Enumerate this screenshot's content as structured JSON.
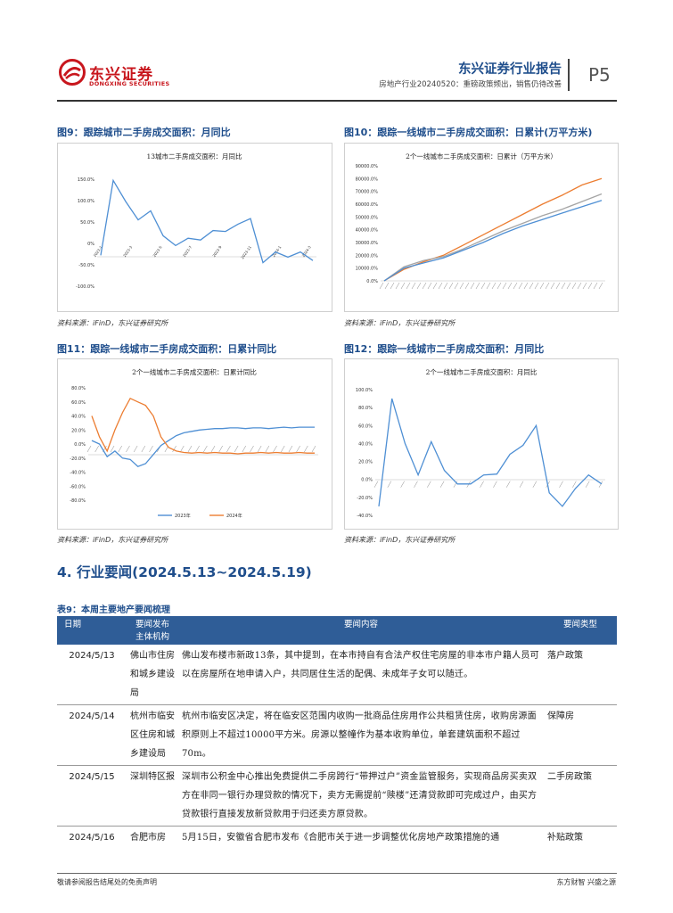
{
  "header": {
    "logo_cn": "东兴证券",
    "logo_en": "DONGXING SECURITIES",
    "report_title": "东兴证券行业报告",
    "report_subtitle": "房地产行业20240520：重磅政策频出，销售仍待改善",
    "page_number": "P5"
  },
  "figures": [
    {
      "id": "fig9",
      "caption": "图9：跟踪城市二手房成交面积：月同比",
      "source": "资料来源：iFinD，东兴证券研究所",
      "chart_data": {
        "type": "line",
        "title": "13城市二手房成交面积：月同比",
        "y_ticks": [
          "150.0%",
          "100.0%",
          "50.0%",
          "0%",
          "-50.0%",
          "-100.0%"
        ],
        "ylim": [
          -100,
          150
        ],
        "x_ticks": [
          "2023-1",
          "2023-3",
          "2023-5",
          "2023-7",
          "2023-9",
          "2023-11",
          "2024-1",
          "2024-3"
        ],
        "series": [
          {
            "color": "#4e8fd4",
            "values": [
              -28,
              147,
              98,
              55,
              76,
              18,
              -5,
              12,
              8,
              30,
              28,
              45,
              58,
              -45,
              -20,
              -32,
              -20,
              -40
            ]
          }
        ]
      }
    },
    {
      "id": "fig10",
      "caption": "图10：跟踪一线城市二手房成交面积：日累计(万平方米)",
      "source": "资料来源：iFinD，东兴证券研究所",
      "chart_data": {
        "type": "line",
        "title": "2个一线城市二手房成交面积：日累计（万平方米）",
        "y_ticks": [
          "90000.0%",
          "80000.0%",
          "70000.0%",
          "60000.0%",
          "50000.0%",
          "40000.0%",
          "30000.0%",
          "20000.0%",
          "10000.0%",
          "0.0%"
        ],
        "ylim": [
          0,
          90000
        ],
        "series": [
          {
            "color": "#ec7d31",
            "values": [
              0,
              9000,
              15000,
              20000,
              28000,
              36000,
              44000,
              52000,
              60000,
              67000,
              75000,
              80000
            ]
          },
          {
            "color": "#a5a5a5",
            "values": [
              0,
              11000,
              16000,
              19000,
              25000,
              32000,
              39000,
              45000,
              51000,
              56000,
              62000,
              68000
            ]
          },
          {
            "color": "#4e8fd4",
            "values": [
              0,
              10000,
              14000,
              18000,
              24000,
              30000,
              37000,
              43000,
              48000,
              53000,
              58000,
              63000
            ]
          }
        ]
      }
    },
    {
      "id": "fig11",
      "caption": "图11：跟踪一线城市二手房成交面积：日累计同比",
      "source": "资料来源：iFinD，东兴证券研究所",
      "chart_data": {
        "type": "line",
        "title": "2个一线城市二手房成交面积：日累计同比",
        "y_ticks": [
          "80.0%",
          "60.0%",
          "40.0%",
          "20.0%",
          "0.0%",
          "-20.0%",
          "-40.0%",
          "-60.0%",
          "-80.0%"
        ],
        "ylim": [
          -80,
          80
        ],
        "legend": [
          "2023年",
          "2024年"
        ],
        "series": [
          {
            "name": "2023年",
            "color": "#4e8fd4",
            "values": [
              5,
              0,
              -18,
              -10,
              -20,
              -22,
              -32,
              -28,
              -15,
              -2,
              5,
              12,
              16,
              18,
              20,
              21,
              22,
              22,
              23,
              23,
              22,
              23,
              23,
              22,
              23,
              24,
              23,
              24,
              24,
              24
            ]
          },
          {
            "name": "2024年",
            "color": "#ec7d31",
            "values": [
              40,
              10,
              -10,
              20,
              45,
              65,
              60,
              55,
              40,
              10,
              -5,
              -10,
              -12,
              -13,
              -12,
              -13,
              -12,
              -13,
              -13,
              -14,
              -13,
              -13,
              -12,
              -13,
              -12,
              -13,
              -13,
              -12,
              -13,
              -13
            ]
          }
        ]
      }
    },
    {
      "id": "fig12",
      "caption": "图12：跟踪一线城市二手房成交面积：月同比",
      "source": "资料来源：iFinD，东兴证券研究所",
      "chart_data": {
        "type": "line",
        "title": "2个一线城市二手房成交面积：月同比",
        "y_ticks": [
          "100.0%",
          "80.0%",
          "60.0%",
          "40.0%",
          "20.0%",
          "0.0%",
          "-20.0%",
          "-40.0%"
        ],
        "ylim": [
          -40,
          100
        ],
        "series": [
          {
            "color": "#4e8fd4",
            "values": [
              -30,
              90,
              40,
              5,
              42,
              10,
              -5,
              -5,
              5,
              6,
              28,
              38,
              60,
              -15,
              -30,
              -10,
              5,
              -5
            ]
          }
        ]
      }
    }
  ],
  "section": {
    "heading": "4. 行业要闻(2024.5.13~2024.5.19)"
  },
  "table": {
    "title": "表9：本周主要地产要闻梳理",
    "headers": [
      "日期",
      "要闻发布",
      "要闻内容",
      "要闻类型"
    ],
    "subheader": "主体机构",
    "rows": [
      {
        "date": "2024/5/13",
        "org": "佛山市住房和城乡建设局",
        "content": "佛山发布楼市新政13条，其中提到，在本市持自有合法产权住宅房屋的非本市户籍人员可以在房屋所在地申请入户，共同居住生活的配偶、未成年子女可以随迁。",
        "type": "落户政策"
      },
      {
        "date": "2024/5/14",
        "org": "杭州市临安区住房和城乡建设局",
        "content": "杭州市临安区决定，将在临安区范围内收购一批商品住房用作公共租赁住房，收购房源面积原则上不超过10000平方米。房源以整幢作为基本收购单位，单套建筑面积不超过70m。",
        "type": "保障房"
      },
      {
        "date": "2024/5/15",
        "org": "深圳特区报",
        "content": "深圳市公积金中心推出免费提供二手房跨行“带押过户”资金监管服务，实现商品房买卖双方在非同一银行办理贷款的情况下，卖方无需提前“赎楼”还清贷款即可完成过户，由买方贷款银行直接发放新贷款用于归还卖方原贷款。",
        "type": "二手房政策"
      },
      {
        "date": "2024/5/16",
        "org": "合肥市房",
        "content": "5月15日，安徽省合肥市发布《合肥市关于进一步调整优化房地产政策措施的通",
        "type": "补贴政策"
      }
    ]
  },
  "footer": {
    "left": "敬请参阅报告结尾处的免责声明",
    "right": "东方财智  兴盛之源"
  },
  "colors": {
    "brand_red": "#c8161d",
    "brand_blue": "#1f4e8c",
    "table_header": "#2f5d97"
  }
}
